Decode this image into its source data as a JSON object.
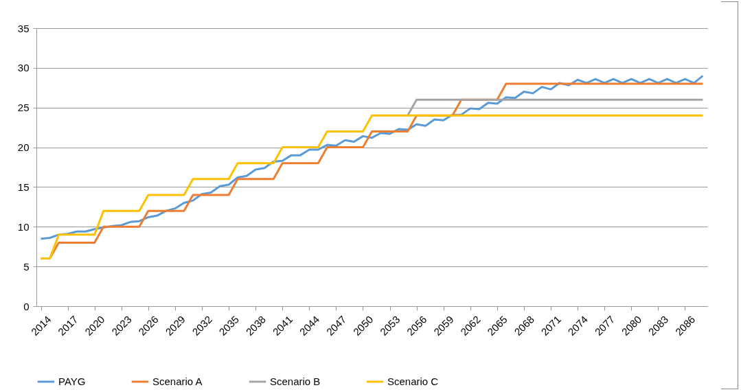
{
  "chart_data": {
    "type": "line",
    "categories": [
      "2014",
      null,
      null,
      "2017",
      null,
      null,
      "2020",
      null,
      null,
      "2023",
      null,
      null,
      "2026",
      null,
      null,
      "2029",
      null,
      null,
      "2032",
      null,
      null,
      "2035",
      null,
      null,
      "2038",
      null,
      null,
      "2041",
      null,
      null,
      "2044",
      null,
      null,
      "2047",
      null,
      null,
      "2050",
      null,
      null,
      "2053",
      null,
      null,
      "2056",
      null,
      null,
      "2059",
      null,
      null,
      "2062",
      null,
      null,
      "2065",
      null,
      null,
      "2068",
      null,
      null,
      "2071",
      null,
      null,
      "2074",
      null,
      null,
      "2077",
      null,
      null,
      "2080",
      null,
      null,
      "2083",
      null,
      null,
      "2086",
      null,
      null
    ],
    "series": [
      {
        "name": "PAYG",
        "color": "#5b9bd5",
        "values": [
          8.5,
          8.6,
          9.0,
          9.1,
          9.4,
          9.4,
          9.7,
          9.9,
          10.1,
          10.2,
          10.6,
          10.7,
          11.2,
          11.4,
          12.0,
          12.3,
          13.0,
          13.3,
          14.1,
          14.3,
          15.1,
          15.3,
          16.2,
          16.4,
          17.2,
          17.4,
          18.2,
          18.3,
          19.0,
          19.0,
          19.7,
          19.7,
          20.3,
          20.2,
          20.9,
          20.7,
          21.4,
          21.2,
          21.8,
          21.7,
          22.3,
          22.2,
          22.9,
          22.7,
          23.5,
          23.4,
          24.1,
          24.1,
          24.9,
          24.8,
          25.6,
          25.5,
          26.3,
          26.2,
          27.0,
          26.8,
          27.6,
          27.3,
          28.1,
          27.8,
          28.5,
          28.1,
          28.6,
          28.1,
          28.6,
          28.1,
          28.6,
          28.1,
          28.6,
          28.1,
          28.6,
          28.1,
          28.6,
          28.1,
          29.0
        ]
      },
      {
        "name": "Scenario A",
        "color": "#ed7d31",
        "values": [
          6,
          6,
          8,
          8,
          8,
          8,
          8,
          10,
          10,
          10,
          10,
          10,
          12,
          12,
          12,
          12,
          12,
          14,
          14,
          14,
          14,
          14,
          16,
          16,
          16,
          16,
          16,
          18,
          18,
          18,
          18,
          18,
          20,
          20,
          20,
          20,
          20,
          22,
          22,
          22,
          22,
          22,
          24,
          24,
          24,
          24,
          24,
          26,
          26,
          26,
          26,
          26,
          28,
          28,
          28,
          28,
          28,
          28,
          28,
          28,
          28,
          28,
          28,
          28,
          28,
          28,
          28,
          28,
          28,
          28,
          28,
          28,
          28,
          28,
          28
        ]
      },
      {
        "name": "Scenario B",
        "color": "#a5a5a5",
        "values": [
          null,
          null,
          null,
          null,
          null,
          null,
          null,
          null,
          null,
          null,
          null,
          null,
          null,
          null,
          null,
          null,
          null,
          null,
          null,
          null,
          null,
          null,
          null,
          null,
          null,
          null,
          null,
          null,
          null,
          null,
          null,
          null,
          null,
          null,
          null,
          null,
          null,
          null,
          null,
          null,
          null,
          24,
          26,
          26,
          26,
          26,
          26,
          26,
          26,
          26,
          26,
          26,
          26,
          26,
          26,
          26,
          26,
          26,
          26,
          26,
          26,
          26,
          26,
          26,
          26,
          26,
          26,
          26,
          26,
          26,
          26,
          26,
          26,
          26,
          26
        ]
      },
      {
        "name": "Scenario C",
        "color": "#ffc000",
        "values": [
          6,
          6,
          9,
          9,
          9,
          9,
          9,
          12,
          12,
          12,
          12,
          12,
          14,
          14,
          14,
          14,
          14,
          16,
          16,
          16,
          16,
          16,
          18,
          18,
          18,
          18,
          18,
          20,
          20,
          20,
          20,
          20,
          22,
          22,
          22,
          22,
          22,
          24,
          24,
          24,
          24,
          24,
          24,
          24,
          24,
          24,
          24,
          24,
          24,
          24,
          24,
          24,
          24,
          24,
          24,
          24,
          24,
          24,
          24,
          24,
          24,
          24,
          24,
          24,
          24,
          24,
          24,
          24,
          24,
          24,
          24,
          24,
          24,
          24,
          24
        ]
      }
    ],
    "ylim": [
      0,
      35
    ],
    "yticks": [
      0,
      5,
      10,
      15,
      20,
      25,
      30,
      35
    ],
    "grid": "y",
    "legend": "bottom",
    "marker": "none",
    "line_style": "solid"
  }
}
